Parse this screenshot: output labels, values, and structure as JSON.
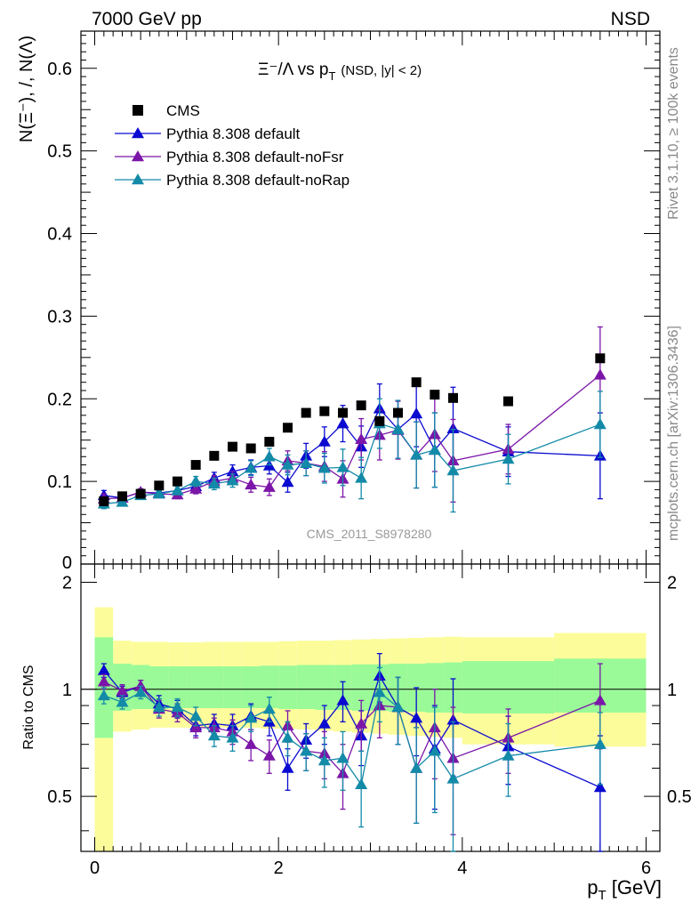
{
  "header": {
    "left": "7000 GeV pp",
    "right": "NSD"
  },
  "side_text": {
    "rivet": "Rivet 3.1.10, ≥ 100k events",
    "mcplots": "mcplots.cern.ch [arXiv:1306.3436]"
  },
  "watermark": "CMS_2011_S8978280",
  "chart_data": {
    "type": "scatter",
    "title_main": "Ξ⁻/Λ  vs p",
    "title_sub": "T",
    "title_tail": "(NSD, |y| < 2)",
    "ylabel": "N(Ξ⁻), /, N(Λ)",
    "ratio_ylabel": "Ratio to CMS",
    "xlabel_main": "p",
    "xlabel_sub": "T",
    "xlabel_tail": " [GeV]",
    "xlim": [
      -0.15,
      6.15
    ],
    "ylim": [
      0,
      0.645
    ],
    "ratio_ylim": [
      0.35,
      2.25
    ],
    "x_ticks": [
      "0",
      "2",
      "4",
      "6"
    ],
    "y_ticks": [
      "0",
      "0.1",
      "0.2",
      "0.3",
      "0.4",
      "0.5",
      "0.6"
    ],
    "ratio_ticks": [
      "0.5",
      "1",
      "2"
    ],
    "colors": {
      "cms": "#000000",
      "default": "#0a0ad0",
      "noFsr": "#7b16a8",
      "noRap": "#138aa8",
      "band_inner": "#9afa98",
      "band_outer": "#fcfc9b"
    },
    "legend": [
      {
        "label": "CMS",
        "marker": "square",
        "color": "#000000"
      },
      {
        "label": "Pythia 8.308 default",
        "marker": "triangle",
        "color": "#0a0ad0"
      },
      {
        "label": "Pythia 8.308 default-noFsr",
        "marker": "triangle",
        "color": "#7b16a8"
      },
      {
        "label": "Pythia 8.308 default-noRap",
        "marker": "triangle",
        "color": "#138aa8"
      }
    ],
    "x": [
      0.1,
      0.3,
      0.5,
      0.7,
      0.9,
      1.1,
      1.3,
      1.5,
      1.7,
      1.9,
      2.1,
      2.3,
      2.5,
      2.7,
      2.9,
      3.1,
      3.3,
      3.5,
      3.7,
      3.9,
      4.5,
      5.5
    ],
    "cms": [
      0.076,
      0.082,
      0.085,
      0.095,
      0.1,
      0.12,
      0.131,
      0.142,
      0.14,
      0.148,
      0.165,
      0.183,
      0.185,
      0.183,
      0.192,
      0.173,
      0.183,
      0.22,
      0.205,
      0.201,
      0.197,
      0.249
    ],
    "band_edges": [
      0.0,
      0.2,
      0.4,
      0.6,
      0.8,
      1.0,
      1.2,
      1.4,
      1.6,
      1.8,
      2.0,
      2.2,
      2.4,
      2.6,
      2.8,
      3.0,
      3.2,
      3.4,
      3.6,
      3.8,
      4.0,
      5.0,
      6.0
    ],
    "band_inner": [
      [
        0.73,
        1.4
      ],
      [
        0.87,
        1.18
      ],
      [
        0.88,
        1.17
      ],
      [
        0.88,
        1.16
      ],
      [
        0.885,
        1.16
      ],
      [
        0.885,
        1.16
      ],
      [
        0.885,
        1.16
      ],
      [
        0.885,
        1.16
      ],
      [
        0.885,
        1.16
      ],
      [
        0.885,
        1.165
      ],
      [
        0.88,
        1.165
      ],
      [
        0.88,
        1.17
      ],
      [
        0.875,
        1.17
      ],
      [
        0.875,
        1.17
      ],
      [
        0.87,
        1.175
      ],
      [
        0.87,
        1.175
      ],
      [
        0.865,
        1.18
      ],
      [
        0.865,
        1.18
      ],
      [
        0.86,
        1.185
      ],
      [
        0.86,
        1.19
      ],
      [
        0.855,
        1.2
      ],
      [
        0.86,
        1.22
      ]
    ],
    "band_outer": [
      [
        0.0,
        1.7
      ],
      [
        0.76,
        1.37
      ],
      [
        0.77,
        1.36
      ],
      [
        0.78,
        1.36
      ],
      [
        0.78,
        1.355
      ],
      [
        0.78,
        1.355
      ],
      [
        0.78,
        1.36
      ],
      [
        0.78,
        1.36
      ],
      [
        0.78,
        1.36
      ],
      [
        0.775,
        1.36
      ],
      [
        0.775,
        1.365
      ],
      [
        0.77,
        1.37
      ],
      [
        0.765,
        1.37
      ],
      [
        0.76,
        1.375
      ],
      [
        0.755,
        1.38
      ],
      [
        0.75,
        1.385
      ],
      [
        0.745,
        1.39
      ],
      [
        0.74,
        1.395
      ],
      [
        0.735,
        1.4
      ],
      [
        0.73,
        1.405
      ],
      [
        0.7,
        1.4
      ],
      [
        0.69,
        1.44
      ]
    ],
    "series": [
      {
        "name": "Pythia 8.308 default",
        "key": "default",
        "values": [
          0.083,
          0.08,
          0.087,
          0.086,
          0.089,
          0.094,
          0.104,
          0.112,
          0.117,
          0.119,
          0.099,
          0.131,
          0.148,
          0.17,
          0.142,
          0.188,
          0.163,
          0.182,
          0.138,
          0.164,
          0.136,
          0.131
        ],
        "errors": [
          0.006,
          0.004,
          0.004,
          0.004,
          0.005,
          0.006,
          0.007,
          0.008,
          0.009,
          0.01,
          0.012,
          0.015,
          0.018,
          0.022,
          0.025,
          0.03,
          0.035,
          0.04,
          0.045,
          0.05,
          0.03,
          0.052
        ],
        "ratio": [
          1.13,
          0.98,
          1.02,
          0.91,
          0.88,
          0.79,
          0.8,
          0.79,
          0.84,
          0.81,
          0.6,
          0.72,
          0.8,
          0.93,
          0.74,
          1.09,
          0.89,
          0.83,
          0.68,
          0.82,
          0.69,
          0.53
        ],
        "ratio_errors": [
          0.05,
          0.04,
          0.04,
          0.05,
          0.05,
          0.05,
          0.05,
          0.06,
          0.07,
          0.07,
          0.08,
          0.08,
          0.1,
          0.12,
          0.13,
          0.17,
          0.19,
          0.18,
          0.22,
          0.25,
          0.15,
          0.21
        ]
      },
      {
        "name": "Pythia 8.308 default-noFsr",
        "key": "noFsr",
        "values": [
          0.079,
          0.08,
          0.087,
          0.085,
          0.084,
          0.091,
          0.1,
          0.104,
          0.096,
          0.093,
          0.125,
          0.122,
          0.118,
          0.103,
          0.151,
          0.156,
          0.162,
          0.132,
          0.157,
          0.125,
          0.139,
          0.229
        ],
        "errors": [
          0.006,
          0.004,
          0.004,
          0.004,
          0.005,
          0.006,
          0.007,
          0.008,
          0.009,
          0.01,
          0.012,
          0.015,
          0.018,
          0.022,
          0.025,
          0.03,
          0.035,
          0.04,
          0.045,
          0.05,
          0.03,
          0.058
        ],
        "ratio": [
          1.05,
          0.99,
          1.02,
          0.88,
          0.86,
          0.78,
          0.78,
          0.76,
          0.7,
          0.65,
          0.79,
          0.67,
          0.66,
          0.58,
          0.8,
          0.9,
          0.89,
          0.6,
          0.78,
          0.64,
          0.73,
          0.93
        ],
        "ratio_errors": [
          0.05,
          0.04,
          0.04,
          0.05,
          0.05,
          0.05,
          0.05,
          0.06,
          0.07,
          0.07,
          0.08,
          0.08,
          0.1,
          0.12,
          0.13,
          0.17,
          0.19,
          0.18,
          0.22,
          0.25,
          0.15,
          0.25
        ]
      },
      {
        "name": "Pythia 8.308 default-noRap",
        "key": "noRap",
        "values": [
          0.073,
          0.075,
          0.083,
          0.085,
          0.089,
          0.1,
          0.097,
          0.101,
          0.116,
          0.13,
          0.12,
          0.122,
          0.116,
          0.117,
          0.104,
          0.17,
          0.163,
          0.132,
          0.138,
          0.113,
          0.127,
          0.169
        ],
        "errors": [
          0.006,
          0.004,
          0.004,
          0.004,
          0.005,
          0.006,
          0.007,
          0.008,
          0.009,
          0.01,
          0.012,
          0.015,
          0.018,
          0.022,
          0.025,
          0.03,
          0.035,
          0.04,
          0.045,
          0.05,
          0.03,
          0.04
        ],
        "ratio": [
          0.96,
          0.92,
          0.98,
          0.89,
          0.89,
          0.84,
          0.74,
          0.73,
          0.83,
          0.88,
          0.73,
          0.67,
          0.63,
          0.64,
          0.54,
          0.98,
          0.89,
          0.6,
          0.67,
          0.56,
          0.65,
          0.7
        ],
        "ratio_errors": [
          0.05,
          0.04,
          0.04,
          0.05,
          0.05,
          0.05,
          0.05,
          0.06,
          0.07,
          0.07,
          0.08,
          0.08,
          0.1,
          0.12,
          0.13,
          0.17,
          0.19,
          0.18,
          0.22,
          0.25,
          0.15,
          0.16
        ]
      }
    ]
  }
}
